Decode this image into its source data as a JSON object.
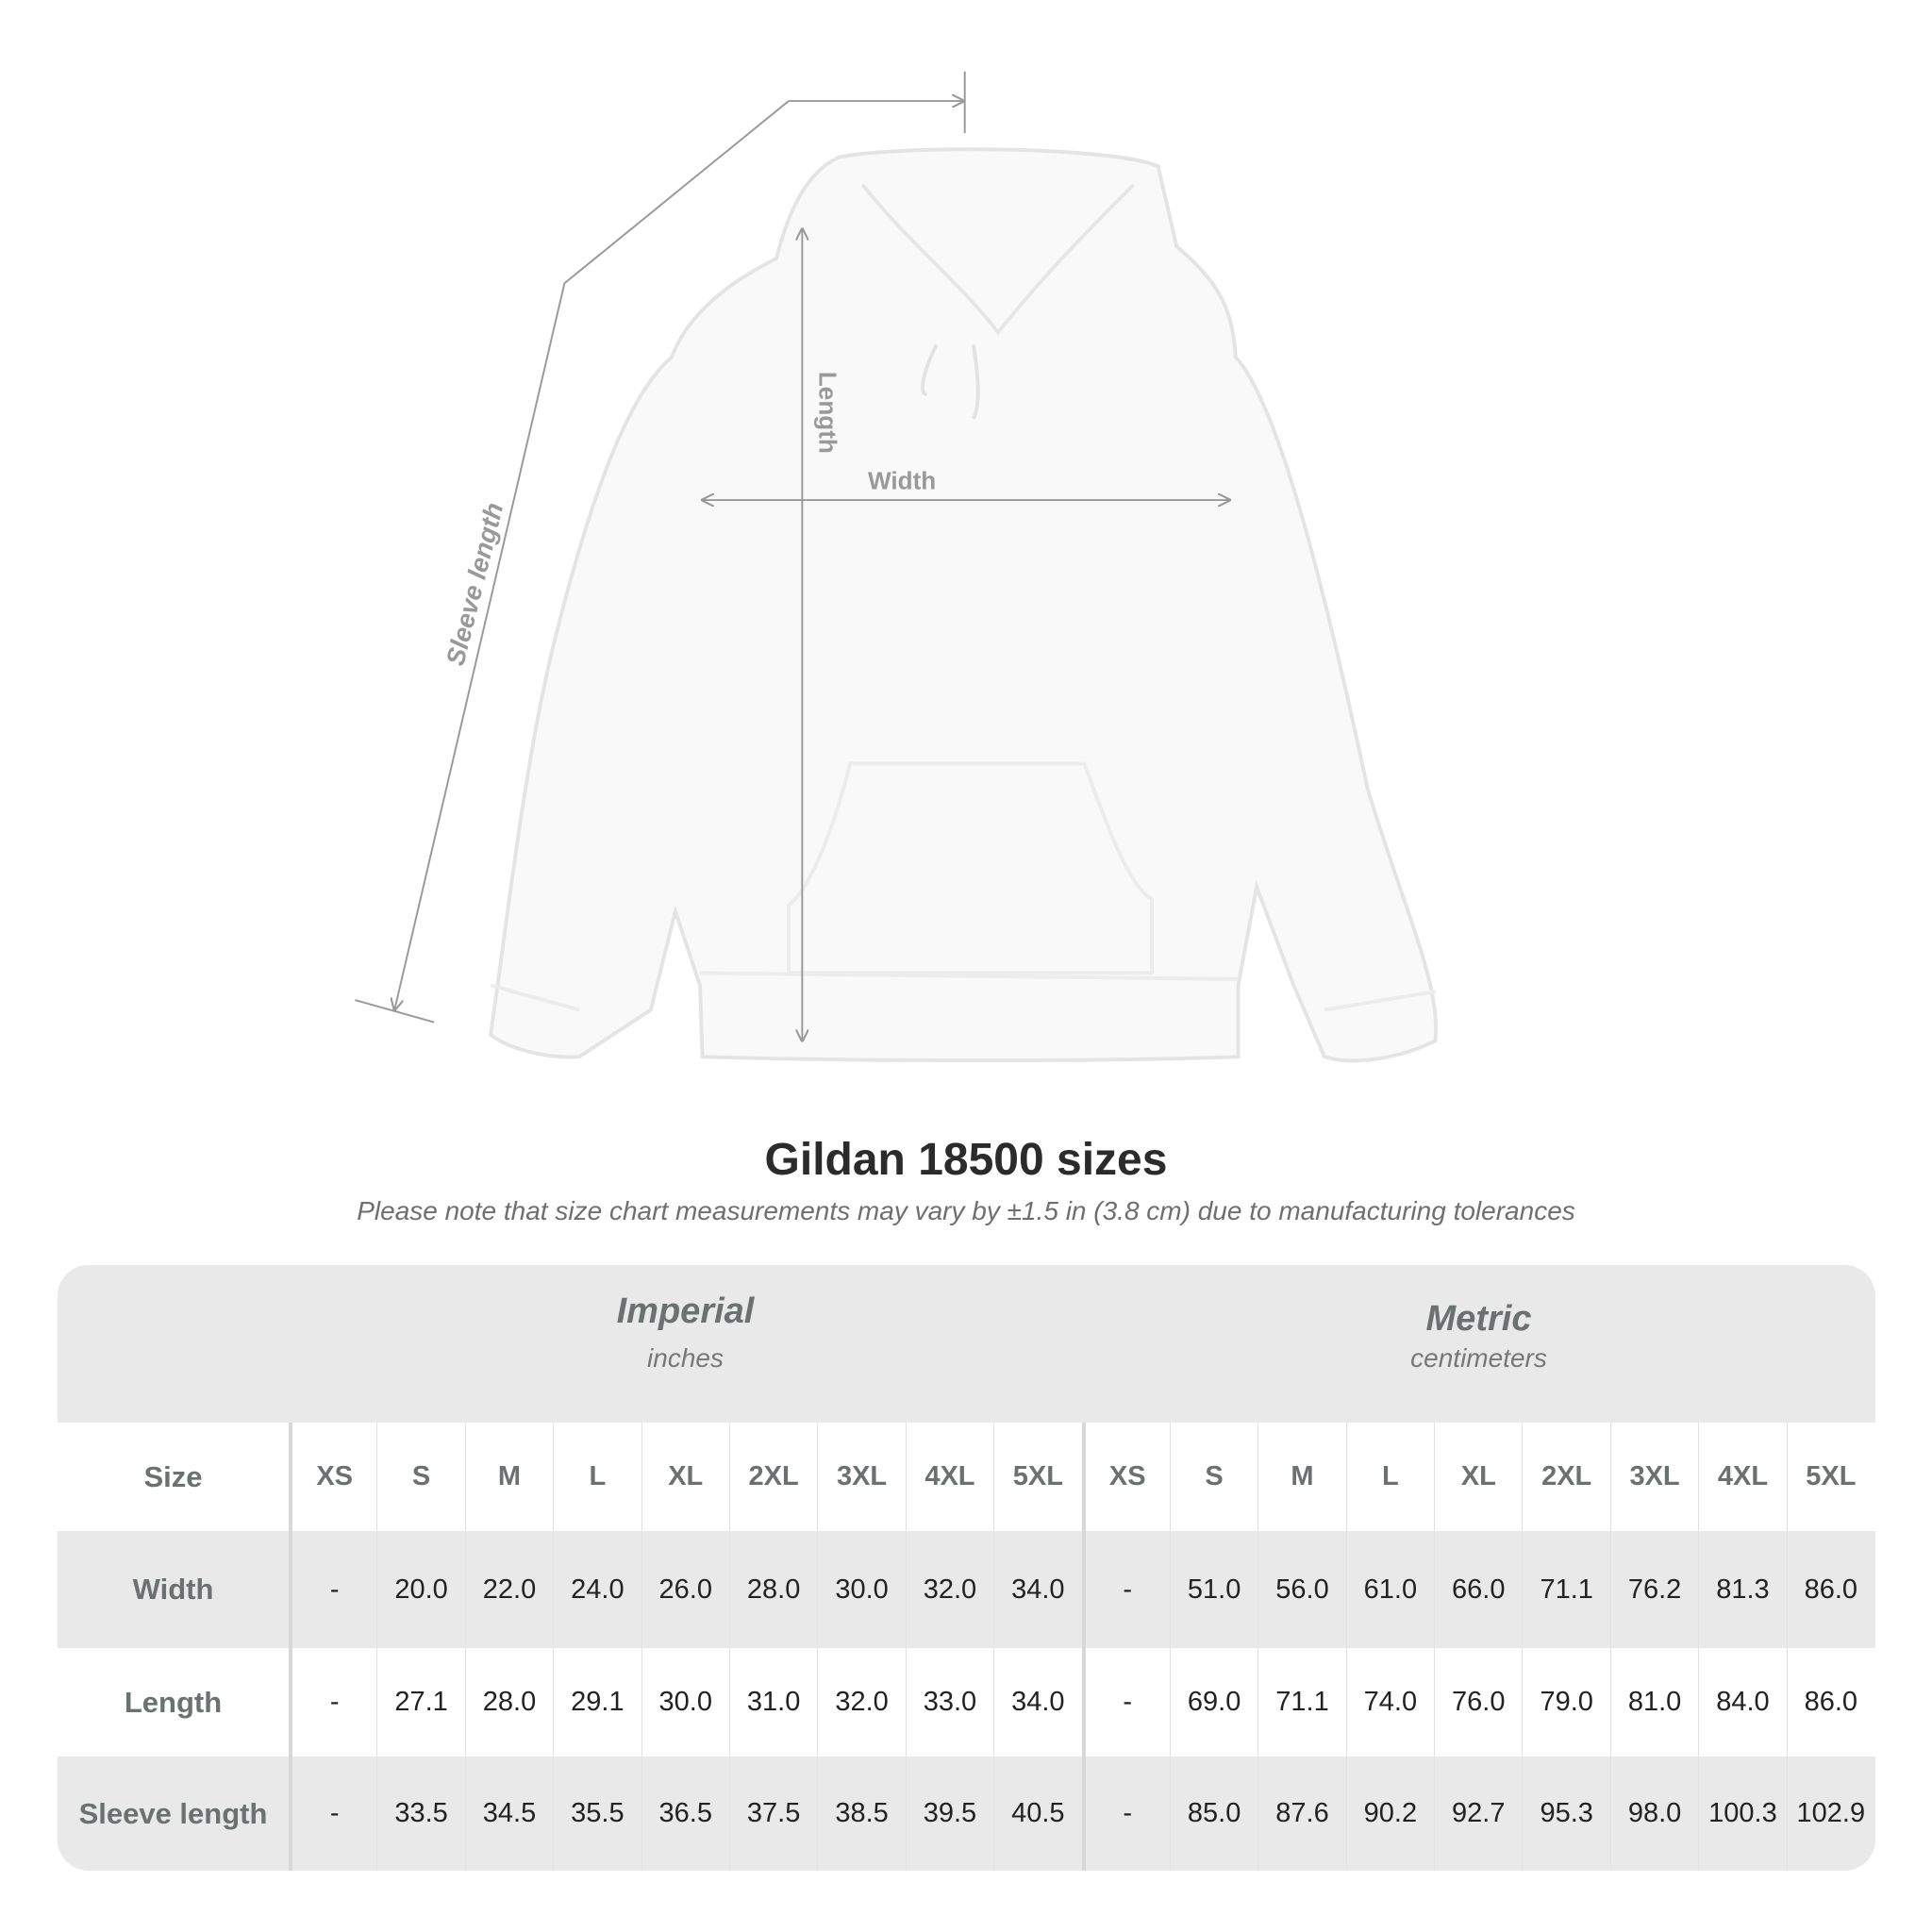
{
  "figure": {
    "labels": {
      "length": "Length",
      "width": "Width",
      "sleeve": "Sleeve length"
    }
  },
  "title": "Gildan 18500 sizes",
  "subtitle": "Please note that size chart measurements may vary by ±1.5 in (3.8 cm) due to manufacturing tolerances",
  "table": {
    "imperial": {
      "name": "Imperial",
      "unit": "inches"
    },
    "metric": {
      "name": "Metric",
      "unit": "centimeters"
    },
    "size_label": "Size",
    "sizes": [
      "XS",
      "S",
      "M",
      "L",
      "XL",
      "2XL",
      "3XL",
      "4XL",
      "5XL"
    ],
    "rows": [
      {
        "label": "Width",
        "imperial": [
          "-",
          "20.0",
          "22.0",
          "24.0",
          "26.0",
          "28.0",
          "30.0",
          "32.0",
          "34.0"
        ],
        "metric": [
          "-",
          "51.0",
          "56.0",
          "61.0",
          "66.0",
          "71.1",
          "76.2",
          "81.3",
          "86.0"
        ]
      },
      {
        "label": "Length",
        "imperial": [
          "-",
          "27.1",
          "28.0",
          "29.1",
          "30.0",
          "31.0",
          "32.0",
          "33.0",
          "34.0"
        ],
        "metric": [
          "-",
          "69.0",
          "71.1",
          "74.0",
          "76.0",
          "79.0",
          "81.0",
          "84.0",
          "86.0"
        ]
      },
      {
        "label": "Sleeve length",
        "imperial": [
          "-",
          "33.5",
          "34.5",
          "35.5",
          "36.5",
          "37.5",
          "38.5",
          "39.5",
          "40.5"
        ],
        "metric": [
          "-",
          "85.0",
          "87.6",
          "90.2",
          "92.7",
          "95.3",
          "98.0",
          "100.3",
          "102.9"
        ]
      }
    ]
  },
  "colors": {
    "header_bg": "#e9e9e9",
    "label_text": "#6b7070",
    "measure_line": "#999999"
  }
}
